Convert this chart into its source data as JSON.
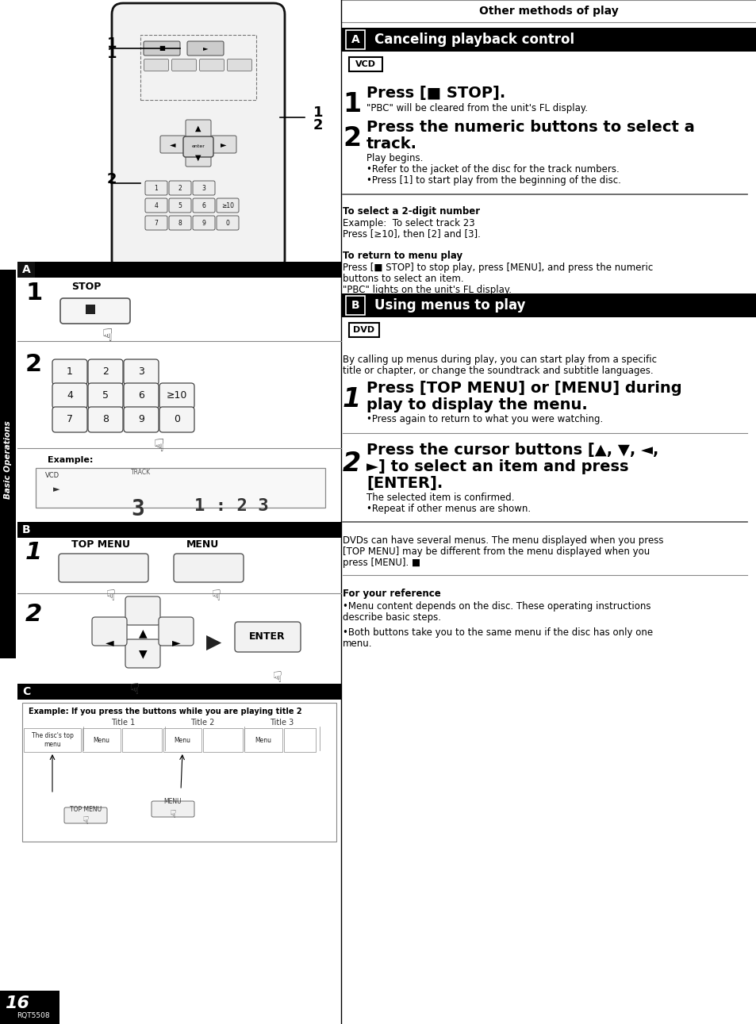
{
  "page_bg": "#ffffff",
  "header_text": "Other methods of play",
  "section_a_title": "Canceling playback control",
  "section_b_title": "Using menus to play",
  "vcd_label": "VCD",
  "dvd_label": "DVD",
  "step1_a_head": "Press [■ STOP].",
  "step1_a_sub": "\"PBC\" will be cleared from the unit's FL display.",
  "step2_a_head_line1": "Press the numeric buttons to select a",
  "step2_a_head_line2": "track.",
  "step2_a_sub1": "Play begins.",
  "step2_a_sub2": "•Refer to the jacket of the disc for the track numbers.",
  "step2_a_sub3": "•Press [1] to start play from the beginning of the disc.",
  "select_2digit_head": "To select a 2-digit number",
  "select_2digit_line1": "Example:  To select track 23",
  "select_2digit_line2": "Press [≥10], then [2] and [3].",
  "return_menu_head": "To return to menu play",
  "return_menu_line1": "Press [■ STOP] to stop play, press [MENU], and press the numeric",
  "return_menu_line2": "buttons to select an item.",
  "return_menu_line3": "\"PBC\" lights on the unit's FL display.",
  "dvd_intro_line1": "By calling up menus during play, you can start play from a specific",
  "dvd_intro_line2": "title or chapter, or change the soundtrack and subtitle languages.",
  "step1_b_head_line1": "Press [TOP MENU] or [MENU] during",
  "step1_b_head_line2": "play to display the menu.",
  "step1_b_sub": "•Press again to return to what you were watching.",
  "step2_b_head_line1": "Press the cursor buttons [▲, ▼, ◄,",
  "step2_b_head_line2": "►] to select an item and press",
  "step2_b_head_line3": "[ENTER].",
  "step2_b_sub1": "The selected item is confirmed.",
  "step2_b_sub2": "•Repeat if other menus are shown.",
  "dvd_note_line1": "DVDs can have several menus. The menu displayed when you press",
  "dvd_note_line2": "[TOP MENU] may be different from the menu displayed when you",
  "dvd_note_line3": "press [MENU]. ■",
  "ref_head": "For your reference",
  "ref_body1_line1": "•Menu content depends on the disc. These operating instructions",
  "ref_body1_line2": "describe basic steps.",
  "ref_body2_line1": "•Both buttons take you to the same menu if the disc has only one",
  "ref_body2_line2": "menu.",
  "sidebar_text": "Basic Operations",
  "page_num": "16",
  "page_code": "RQT5508",
  "example_caption": "Example: If you press the buttons while you are playing title 2",
  "col_titles": [
    "Title 1",
    "Title 2",
    "Title 3"
  ],
  "row0_cells": [
    "The disc's top\nmenu",
    "Menu",
    "",
    "Menu",
    "",
    "Menu",
    ""
  ],
  "kp_row0": [
    "1",
    "2",
    "3"
  ],
  "kp_row1": [
    "4",
    "5",
    "6",
    "≥10"
  ],
  "kp_row2": [
    "7",
    "8",
    "9",
    "0"
  ]
}
